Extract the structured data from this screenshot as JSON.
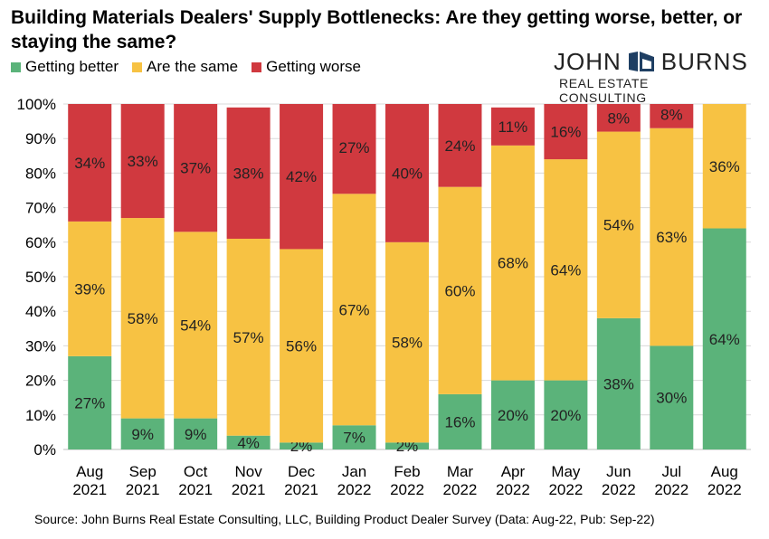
{
  "title": "Building Materials Dealers' Supply Bottlenecks: Are they getting worse, better, or staying the same?",
  "logo": {
    "left": "JOHN",
    "right": "BURNS",
    "subtitle": "REAL ESTATE CONSULTING"
  },
  "source": "Source: John Burns Real Estate Consulting, LLC, Building Product Dealer Survey (Data: Aug-22, Pub: Sep-22)",
  "colors": {
    "better": "#5bb37a",
    "same": "#f7c243",
    "worse": "#d0393f",
    "grid": "#d9d9d9",
    "axis": "#bfbfbf"
  },
  "chart_data": {
    "type": "bar",
    "stacked": true,
    "categories": [
      [
        "Aug",
        "2021"
      ],
      [
        "Sep",
        "2021"
      ],
      [
        "Oct",
        "2021"
      ],
      [
        "Nov",
        "2021"
      ],
      [
        "Dec",
        "2021"
      ],
      [
        "Jan",
        "2022"
      ],
      [
        "Feb",
        "2022"
      ],
      [
        "Mar",
        "2022"
      ],
      [
        "Apr",
        "2022"
      ],
      [
        "May",
        "2022"
      ],
      [
        "Jun",
        "2022"
      ],
      [
        "Jul",
        "2022"
      ],
      [
        "Aug",
        "2022"
      ]
    ],
    "series": [
      {
        "name": "Getting better",
        "color": "#5bb37a",
        "values": [
          27,
          9,
          9,
          4,
          2,
          7,
          2,
          16,
          20,
          20,
          38,
          30,
          64
        ]
      },
      {
        "name": "Are the same",
        "color": "#f7c243",
        "values": [
          39,
          58,
          54,
          57,
          56,
          67,
          58,
          60,
          68,
          64,
          54,
          63,
          36
        ]
      },
      {
        "name": "Getting worse",
        "color": "#d0393f",
        "values": [
          34,
          33,
          37,
          38,
          42,
          27,
          40,
          24,
          11,
          16,
          8,
          8,
          0
        ]
      }
    ],
    "data_labels": [
      [
        "27%",
        "9%",
        "9%",
        "4%",
        "2%",
        "7%",
        "2%",
        "16%",
        "20%",
        "20%",
        "38%",
        "30%",
        "64%"
      ],
      [
        "39%",
        "58%",
        "54%",
        "57%",
        "56%",
        "67%",
        "58%",
        "60%",
        "68%",
        "64%",
        "54%",
        "63%",
        "36%"
      ],
      [
        "34%",
        "33%",
        "37%",
        "38%",
        "42%",
        "27%",
        "40%",
        "24%",
        "11%",
        "16%",
        "8%",
        "8%",
        ""
      ]
    ],
    "yticks": [
      "0%",
      "10%",
      "20%",
      "30%",
      "40%",
      "50%",
      "60%",
      "70%",
      "80%",
      "90%",
      "100%"
    ],
    "ylim": [
      0,
      100
    ],
    "legend_position": "top-left",
    "grid": true
  }
}
